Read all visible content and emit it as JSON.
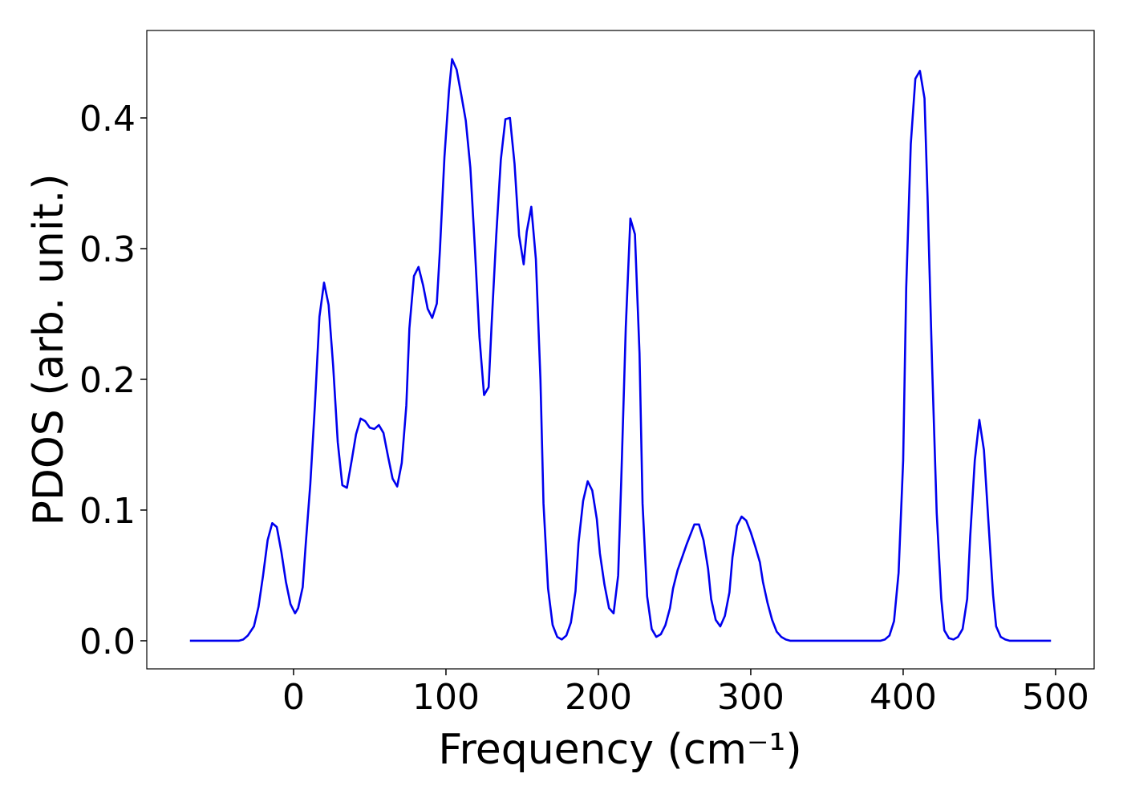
{
  "chart_data": {
    "type": "line",
    "xlabel": "Frequency (cm⁻¹)",
    "ylabel": "PDOS (arb. unit.)",
    "x": [
      -68,
      -60,
      -50,
      -40,
      -36,
      -33,
      -30,
      -26,
      -23,
      -20,
      -17,
      -14,
      -11,
      -8,
      -5,
      -2,
      1,
      3,
      6,
      8,
      11,
      14,
      17,
      20,
      23,
      26,
      29,
      32,
      35,
      38,
      41,
      44,
      47,
      50,
      53,
      56,
      59,
      62,
      65,
      68,
      71,
      74,
      76,
      79,
      82,
      85,
      88,
      91,
      94,
      96,
      99,
      102,
      104,
      107,
      110,
      113,
      116,
      119,
      122,
      125,
      128,
      130,
      133,
      136,
      139,
      142,
      145,
      148,
      151,
      153,
      156,
      159,
      162,
      164,
      167,
      170,
      173,
      176,
      179,
      182,
      185,
      187,
      190,
      193,
      196,
      199,
      201,
      204,
      207,
      210,
      213,
      215,
      218,
      221,
      224,
      227,
      229,
      232,
      235,
      238,
      241,
      244,
      247,
      249,
      252,
      255,
      258,
      261,
      263,
      266,
      269,
      272,
      274,
      277,
      280,
      283,
      286,
      288,
      291,
      294,
      297,
      300,
      303,
      306,
      308,
      311,
      314,
      317,
      320,
      323,
      326,
      340,
      360,
      385,
      388,
      391,
      394,
      397,
      400,
      402,
      405,
      408,
      411,
      414,
      416,
      419,
      422,
      425,
      427,
      430,
      433,
      436,
      439,
      442,
      444,
      447,
      450,
      453,
      456,
      459,
      461,
      464,
      467,
      470,
      480,
      490,
      497
    ],
    "series": [
      {
        "name": "PDOS",
        "color": "#0000ee",
        "values": [
          0,
          0,
          0,
          0,
          0,
          0.001,
          0.004,
          0.011,
          0.026,
          0.05,
          0.077,
          0.09,
          0.087,
          0.068,
          0.045,
          0.028,
          0.021,
          0.025,
          0.041,
          0.074,
          0.12,
          0.18,
          0.248,
          0.274,
          0.257,
          0.21,
          0.152,
          0.119,
          0.117,
          0.137,
          0.158,
          0.17,
          0.168,
          0.163,
          0.162,
          0.165,
          0.159,
          0.141,
          0.124,
          0.118,
          0.136,
          0.18,
          0.239,
          0.279,
          0.286,
          0.272,
          0.254,
          0.247,
          0.258,
          0.298,
          0.37,
          0.421,
          0.445,
          0.437,
          0.418,
          0.398,
          0.362,
          0.3,
          0.232,
          0.188,
          0.194,
          0.243,
          0.31,
          0.368,
          0.399,
          0.4,
          0.365,
          0.31,
          0.288,
          0.313,
          0.332,
          0.292,
          0.2,
          0.105,
          0.04,
          0.012,
          0.003,
          0.001,
          0.004,
          0.014,
          0.038,
          0.075,
          0.107,
          0.122,
          0.115,
          0.093,
          0.067,
          0.043,
          0.025,
          0.021,
          0.05,
          0.122,
          0.24,
          0.323,
          0.311,
          0.22,
          0.105,
          0.034,
          0.009,
          0.003,
          0.005,
          0.012,
          0.025,
          0.04,
          0.054,
          0.064,
          0.074,
          0.083,
          0.089,
          0.089,
          0.077,
          0.055,
          0.032,
          0.016,
          0.011,
          0.019,
          0.037,
          0.064,
          0.088,
          0.095,
          0.092,
          0.083,
          0.072,
          0.06,
          0.045,
          0.029,
          0.016,
          0.007,
          0.003,
          0.001,
          0,
          0,
          0,
          0,
          0.001,
          0.004,
          0.015,
          0.052,
          0.138,
          0.27,
          0.38,
          0.43,
          0.436,
          0.415,
          0.34,
          0.21,
          0.098,
          0.032,
          0.008,
          0.002,
          0.001,
          0.003,
          0.009,
          0.032,
          0.08,
          0.138,
          0.169,
          0.146,
          0.09,
          0.035,
          0.011,
          0.003,
          0.001,
          0,
          0,
          0,
          0
        ]
      }
    ],
    "xlim": [
      -96.3,
      525.3
    ],
    "xticks": [
      0,
      100,
      200,
      300,
      400,
      500
    ],
    "ylim": [
      -0.0215,
      0.4669
    ],
    "yticks": [
      {
        "value": 0,
        "label": "0.0"
      },
      0.1,
      0.2,
      0.3,
      0.4
    ]
  }
}
